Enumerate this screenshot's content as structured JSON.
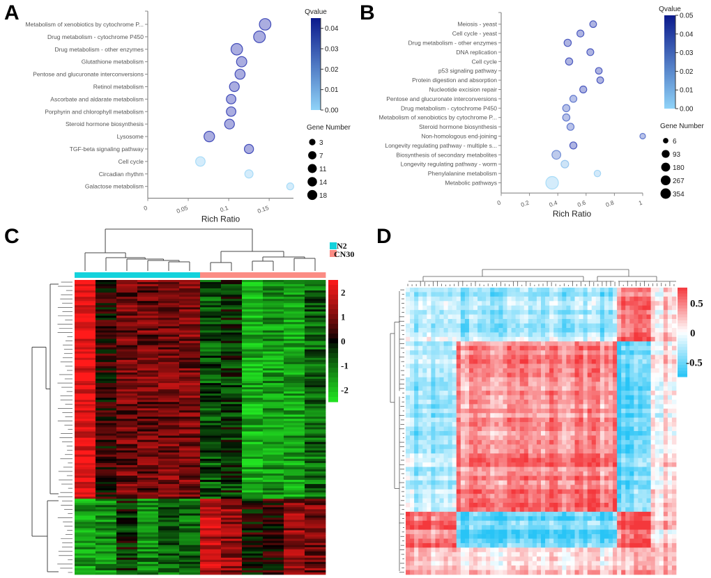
{
  "panels": {
    "A": {
      "letter": "A"
    },
    "B": {
      "letter": "B"
    },
    "C": {
      "letter": "C"
    },
    "D": {
      "letter": "D"
    }
  },
  "chart_data": [
    {
      "id": "A",
      "type": "scatter",
      "subtype": "bubble",
      "title": "",
      "xlabel": "Rich Ratio",
      "ylabel": "",
      "xlim": [
        0,
        0.18
      ],
      "xticks": [
        0,
        0.05,
        0.1,
        0.15
      ],
      "xtick_labels": [
        "0",
        "0.05",
        "0.1",
        "0.15"
      ],
      "categories": [
        "Metabolism of xenobiotics by cytochrome P...",
        "Drug metabolism - cytochrome P450",
        "Drug metabolism - other enzymes",
        "Glutathione metabolism",
        "Pentose and glucuronate interconversions",
        "Retinol metabolism",
        "Ascorbate and aldarate metabolism",
        "Porphyrin and chlorophyll metabolism",
        "Steroid hormone biosynthesis",
        "Lysosome",
        "TGF-beta signaling pathway",
        "Cell cycle",
        "Circadian rhythm",
        "Galactose metabolism"
      ],
      "rich_ratio": [
        0.145,
        0.138,
        0.11,
        0.116,
        0.114,
        0.107,
        0.103,
        0.103,
        0.101,
        0.076,
        0.125,
        0.065,
        0.125,
        0.176
      ],
      "gene_number": [
        16,
        17,
        16,
        10,
        9,
        8,
        7,
        7,
        8,
        11,
        6,
        7,
        4,
        3
      ],
      "qvalue": [
        0.02,
        0.02,
        0.02,
        0.02,
        0.02,
        0.02,
        0.02,
        0.02,
        0.02,
        0.02,
        0.02,
        0.0,
        0.0,
        0.0
      ],
      "color_legend": {
        "title": "Qvalue",
        "range": [
          0.0,
          0.045
        ],
        "ticks": [
          "0.00",
          "0.01",
          "0.02",
          "0.03",
          "0.04"
        ],
        "tick_values": [
          0,
          0.01,
          0.02,
          0.03,
          0.04
        ],
        "low_color": "#8fd3f8",
        "high_color": "#0b1a8c"
      },
      "size_legend": {
        "title": "Gene Number",
        "values": [
          3,
          7,
          11,
          14,
          18
        ],
        "labels": [
          "3",
          "7",
          "11",
          "14",
          "18"
        ]
      }
    },
    {
      "id": "B",
      "type": "scatter",
      "subtype": "bubble",
      "title": "",
      "xlabel": "Rich Ratio",
      "ylabel": "",
      "xlim": [
        0,
        1.0
      ],
      "xticks": [
        0,
        0.2,
        0.4,
        0.6,
        0.8,
        1
      ],
      "xtick_labels": [
        "0",
        "0.2",
        "0.4",
        "0.6",
        "0.8",
        "1"
      ],
      "categories": [
        "Meiosis - yeast",
        "Cell cycle - yeast",
        "Drug metabolism - other enzymes",
        "DNA replication",
        "Cell cycle",
        "p53 signaling pathway",
        "Protein digestion and absorption",
        "Nucleotide excision repair",
        "Pentose and glucuronate interconversions",
        "Drug metabolism - cytochrome P450",
        "Metabolism of xenobiotics by cytochrome P...",
        "Steroid hormone biosynthesis",
        "Non-homologous end-joining",
        "Longevity regulating pathway - multiple s...",
        "Biosynthesis of secondary metabolites",
        "Longevity regulating pathway - worm",
        "Phenylalanine metabolism",
        "Metabolic pathways"
      ],
      "rich_ratio": [
        0.65,
        0.56,
        0.47,
        0.63,
        0.48,
        0.69,
        0.7,
        0.58,
        0.51,
        0.46,
        0.46,
        0.49,
        1.0,
        0.51,
        0.39,
        0.45,
        0.68,
        0.36
      ],
      "gene_number": [
        15,
        20,
        25,
        18,
        25,
        14,
        14,
        20,
        20,
        25,
        25,
        22,
        6,
        22,
        80,
        35,
        12,
        354
      ],
      "qvalue": [
        0.02,
        0.02,
        0.02,
        0.02,
        0.02,
        0.02,
        0.02,
        0.02,
        0.015,
        0.015,
        0.015,
        0.015,
        0.015,
        0.02,
        0.012,
        0.003,
        0.001,
        0.0
      ],
      "color_legend": {
        "title": "Qvalue",
        "range": [
          0.0,
          0.05
        ],
        "ticks": [
          "0.00",
          "0.01",
          "0.02",
          "0.03",
          "0.04",
          "0.05"
        ],
        "tick_values": [
          0,
          0.01,
          0.02,
          0.03,
          0.04,
          0.05
        ],
        "low_color": "#8fd3f8",
        "high_color": "#0b1a8c"
      },
      "size_legend": {
        "title": "Gene Number",
        "values": [
          6,
          93,
          180,
          267,
          354
        ],
        "labels": [
          "6",
          "93",
          "180",
          "267",
          "354"
        ]
      }
    },
    {
      "id": "C",
      "type": "heatmap",
      "title": "",
      "n_columns": 12,
      "column_groups": [
        "N2",
        "N2",
        "N2",
        "N2",
        "N2",
        "N2",
        "CN30",
        "CN30",
        "CN30",
        "CN30",
        "CN30",
        "CN30"
      ],
      "group_legend": [
        {
          "label": "N2",
          "color": "#14d2dc"
        },
        {
          "label": "CN30",
          "color": "#fb8c84"
        }
      ],
      "colorbar": {
        "ticks": [
          2,
          1,
          0,
          -1,
          -2
        ],
        "labels": [
          "2",
          "1",
          "0",
          "-1",
          "-2"
        ],
        "low_color": "#22e622",
        "mid_color": "#000000",
        "high_color": "#ff1a1a",
        "range": [
          -2.5,
          2.5
        ]
      },
      "row_blocks": [
        {
          "fraction": 0.74,
          "column_means": [
            2.2,
            0.3,
            0.9,
            0.9,
            1.0,
            1.0,
            -0.7,
            -0.4,
            -1.8,
            -1.5,
            -1.6,
            -0.9
          ]
        },
        {
          "fraction": 0.26,
          "column_means": [
            -1.6,
            -1.3,
            -0.3,
            -1.3,
            -0.9,
            -1.0,
            1.7,
            1.3,
            0.0,
            0.3,
            1.2,
            1.0
          ]
        }
      ]
    },
    {
      "id": "D",
      "type": "heatmap",
      "title": "",
      "symmetric": true,
      "colorbar": {
        "ticks": [
          0.5,
          0,
          -0.5
        ],
        "labels": [
          "0.5",
          "0",
          "-0.5"
        ],
        "low_color": "#28c4f6",
        "mid_color": "#ffffff",
        "high_color": "#f4383c",
        "range": [
          -0.75,
          0.75
        ]
      },
      "clusters": [
        {
          "name": "c1",
          "fraction": 0.18
        },
        {
          "name": "c2",
          "fraction": 0.6
        },
        {
          "name": "c3",
          "fraction": 0.12
        },
        {
          "name": "c4",
          "fraction": 0.1
        }
      ],
      "block_correlations": [
        [
          -0.2,
          -0.3,
          0.5,
          0.2
        ],
        [
          -0.3,
          0.45,
          -0.55,
          0.1
        ],
        [
          0.5,
          -0.55,
          0.6,
          0.2
        ],
        [
          0.2,
          0.1,
          0.2,
          0.3
        ]
      ]
    }
  ]
}
